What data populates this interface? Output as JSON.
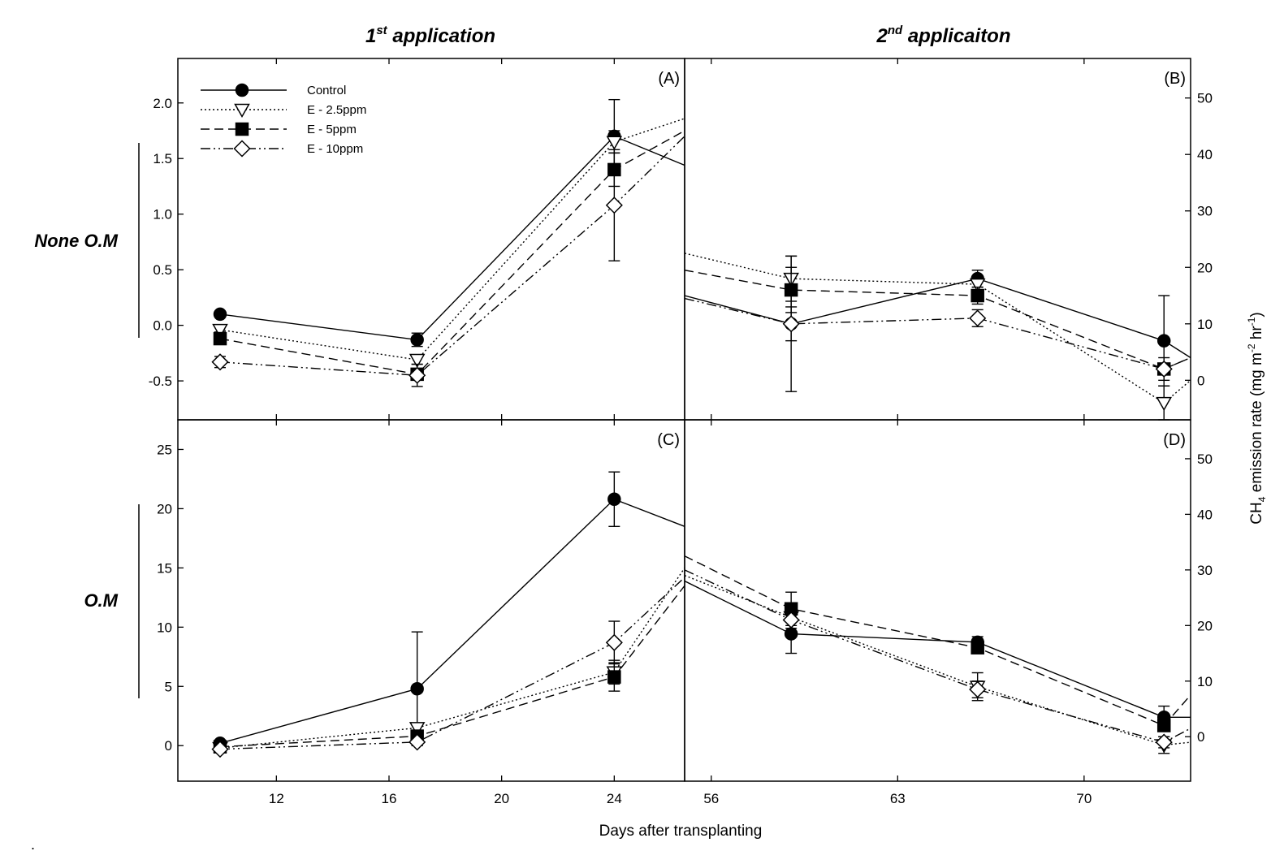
{
  "titles": {
    "left": {
      "sup": "st",
      "pre": "1",
      "post": " application"
    },
    "right": {
      "sup": "nd",
      "pre": "2",
      "post": " applicaiton"
    }
  },
  "row_labels": {
    "top": "None O.M",
    "bottom": "O.M"
  },
  "xlabel": "Days after transplanting",
  "ylabel_right": "CH4 emission rate (mg m-2 hr-1)",
  "stray_mark": ".",
  "legend": [
    {
      "name": "Control",
      "marker": "circle-filled",
      "dash": "solid"
    },
    {
      "name": "E - 2.5ppm",
      "marker": "triangle-down-open",
      "dash": "dotted"
    },
    {
      "name": "E - 5ppm",
      "marker": "square-filled",
      "dash": "dashed"
    },
    {
      "name": "E - 10ppm",
      "marker": "diamond-open",
      "dash": "dashdotdot"
    }
  ],
  "chart_data": [
    {
      "type": "line",
      "panel_label": "(A)",
      "row": "None O.M",
      "application": "1st application",
      "xlim": [
        8.5,
        26.5
      ],
      "xticks": [
        12,
        16,
        20,
        24
      ],
      "ylim": [
        -0.85,
        2.4
      ],
      "yticks": [
        -0.5,
        0.0,
        0.5,
        1.0,
        1.5,
        2.0
      ],
      "ytick_labels": [
        "-0.5",
        "0.0",
        "0.5",
        "1.0",
        "1.5",
        "2.0"
      ],
      "x": [
        10,
        17,
        24
      ],
      "series": [
        {
          "name": "Control",
          "values": [
            0.1,
            -0.13,
            1.7
          ],
          "errors": [
            0.02,
            0.06,
            0.33
          ],
          "tail": 1.44
        },
        {
          "name": "E - 2.5ppm",
          "values": [
            -0.04,
            -0.31,
            1.65
          ],
          "errors": [
            0.02,
            0.04,
            0.1
          ],
          "tail": 1.86
        },
        {
          "name": "E - 5ppm",
          "values": [
            -0.12,
            -0.44,
            1.4
          ],
          "errors": [
            0.03,
            0.05,
            0.15
          ],
          "tail": 1.75
        },
        {
          "name": "E - 10ppm",
          "values": [
            -0.33,
            -0.45,
            1.08
          ],
          "errors": [
            0.05,
            0.1,
            0.5
          ],
          "tail": 1.7
        }
      ]
    },
    {
      "type": "line",
      "panel_label": "(B)",
      "row": "None O.M",
      "application": "2nd application",
      "xlim": [
        55,
        74
      ],
      "xticks": [
        56,
        63,
        70
      ],
      "ylim": [
        -7,
        57
      ],
      "yticks": [
        0,
        10,
        20,
        30,
        40,
        50
      ],
      "ytick_labels": [
        "0",
        "10",
        "20",
        "30",
        "40",
        "50"
      ],
      "x": [
        59,
        66,
        73
      ],
      "series": [
        {
          "name": "Control",
          "values": [
            10,
            18,
            7
          ],
          "errors": [
            12,
            1.5,
            8
          ],
          "head": 15,
          "tail": 4
        },
        {
          "name": "E - 2.5ppm",
          "values": [
            18,
            17,
            -4
          ],
          "errors": [
            4,
            1.5,
            3
          ],
          "head": 22.5,
          "tail": 0
        },
        {
          "name": "E - 5ppm",
          "values": [
            16,
            15,
            2
          ],
          "errors": [
            4,
            1.5,
            2
          ],
          "head": 19.5,
          "tail": 4
        },
        {
          "name": "E - 10ppm",
          "values": [
            10,
            11,
            2
          ],
          "errors": [
            3,
            1.5,
            1
          ],
          "head": 14.5,
          "tail": 4
        }
      ]
    },
    {
      "type": "line",
      "panel_label": "(C)",
      "row": "O.M",
      "application": "1st application",
      "xlim": [
        8.5,
        26.5
      ],
      "xticks": [
        12,
        16,
        20,
        24
      ],
      "ylim": [
        -3,
        27.5
      ],
      "yticks": [
        0,
        5,
        10,
        15,
        20,
        25
      ],
      "ytick_labels": [
        "0",
        "5",
        "10",
        "15",
        "20",
        "25"
      ],
      "x": [
        10,
        17,
        24
      ],
      "series": [
        {
          "name": "Control",
          "values": [
            0.2,
            4.8,
            20.8
          ],
          "errors": [
            0.2,
            4.8,
            2.3
          ],
          "tail": 18.5
        },
        {
          "name": "E - 2.5ppm",
          "values": [
            -0.2,
            1.5,
            6.2
          ],
          "errors": [
            0.2,
            0.3,
            1.0
          ],
          "tail": 15.0
        },
        {
          "name": "E - 5ppm",
          "values": [
            -0.1,
            0.8,
            5.8
          ],
          "errors": [
            0.2,
            0.3,
            1.2
          ],
          "tail": 13.5
        },
        {
          "name": "E - 10ppm",
          "values": [
            -0.3,
            0.3,
            8.7
          ],
          "errors": [
            0.2,
            0.3,
            1.8
          ],
          "tail": 14.2
        }
      ]
    },
    {
      "type": "line",
      "panel_label": "(D)",
      "row": "O.M",
      "application": "2nd application",
      "xlim": [
        55,
        74
      ],
      "xticks": [
        56,
        63,
        70
      ],
      "ylim": [
        -8,
        57
      ],
      "yticks": [
        0,
        10,
        20,
        30,
        40,
        50
      ],
      "ytick_labels": [
        "0",
        "10",
        "20",
        "30",
        "40",
        "50"
      ],
      "x": [
        59,
        66,
        73
      ],
      "series": [
        {
          "name": "Control",
          "values": [
            18.5,
            17,
            3.5
          ],
          "errors": [
            3.5,
            1,
            2
          ],
          "head": 28,
          "tail": 3.5
        },
        {
          "name": "E - 2.5ppm",
          "values": [
            21.5,
            9,
            -1.5
          ],
          "errors": [
            2,
            2.5,
            1.5
          ],
          "head": 29,
          "tail": -1
        },
        {
          "name": "E - 5ppm",
          "values": [
            23,
            16,
            2
          ],
          "errors": [
            3,
            1,
            1
          ],
          "head": 32.5,
          "tail": 7.5
        },
        {
          "name": "E - 10ppm",
          "values": [
            21,
            8.5,
            -1
          ],
          "errors": [
            2,
            1.5,
            1
          ],
          "head": 30,
          "tail": 1.5
        }
      ]
    }
  ]
}
